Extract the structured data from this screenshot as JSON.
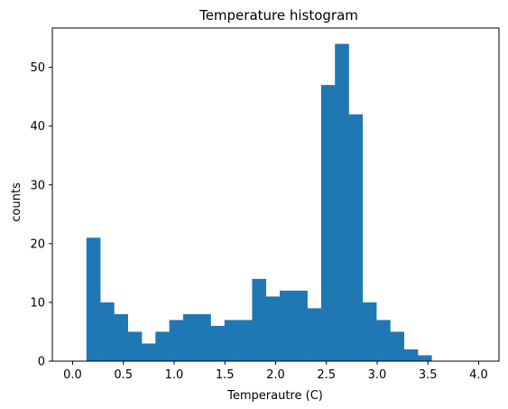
{
  "chart_data": {
    "type": "bar",
    "title": "Temperature histogram",
    "xlabel": "Temperautre (C)",
    "ylabel": "counts",
    "xlim": [
      -0.2,
      4.2
    ],
    "ylim": [
      0,
      56.7
    ],
    "xticks": [
      "0.0",
      "0.5",
      "1.0",
      "1.5",
      "2.0",
      "2.5",
      "3.0",
      "3.5",
      "4.0"
    ],
    "yticks": [
      "0",
      "10",
      "20",
      "30",
      "40",
      "50"
    ],
    "bins": [
      {
        "x0": 0.136,
        "x1": 0.272,
        "value": 21
      },
      {
        "x0": 0.272,
        "x1": 0.408,
        "value": 10
      },
      {
        "x0": 0.408,
        "x1": 0.544,
        "value": 8
      },
      {
        "x0": 0.544,
        "x1": 0.68,
        "value": 5
      },
      {
        "x0": 0.68,
        "x1": 0.816,
        "value": 3
      },
      {
        "x0": 0.816,
        "x1": 0.952,
        "value": 5
      },
      {
        "x0": 0.952,
        "x1": 1.088,
        "value": 7
      },
      {
        "x0": 1.088,
        "x1": 1.224,
        "value": 8
      },
      {
        "x0": 1.224,
        "x1": 1.36,
        "value": 8
      },
      {
        "x0": 1.36,
        "x1": 1.496,
        "value": 6
      },
      {
        "x0": 1.496,
        "x1": 1.632,
        "value": 7
      },
      {
        "x0": 1.632,
        "x1": 1.768,
        "value": 7
      },
      {
        "x0": 1.768,
        "x1": 1.904,
        "value": 14
      },
      {
        "x0": 1.904,
        "x1": 2.04,
        "value": 11
      },
      {
        "x0": 2.04,
        "x1": 2.176,
        "value": 12
      },
      {
        "x0": 2.176,
        "x1": 2.312,
        "value": 12
      },
      {
        "x0": 2.312,
        "x1": 2.448,
        "value": 9
      },
      {
        "x0": 2.448,
        "x1": 2.584,
        "value": 47
      },
      {
        "x0": 2.584,
        "x1": 2.72,
        "value": 54
      },
      {
        "x0": 2.72,
        "x1": 2.856,
        "value": 42
      },
      {
        "x0": 2.856,
        "x1": 2.992,
        "value": 10
      },
      {
        "x0": 2.992,
        "x1": 3.128,
        "value": 7
      },
      {
        "x0": 3.128,
        "x1": 3.264,
        "value": 5
      },
      {
        "x0": 3.264,
        "x1": 3.4,
        "value": 2
      },
      {
        "x0": 3.4,
        "x1": 3.536,
        "value": 1
      }
    ],
    "bar_color": "#1f77b4",
    "grid": false,
    "legend": "none"
  }
}
